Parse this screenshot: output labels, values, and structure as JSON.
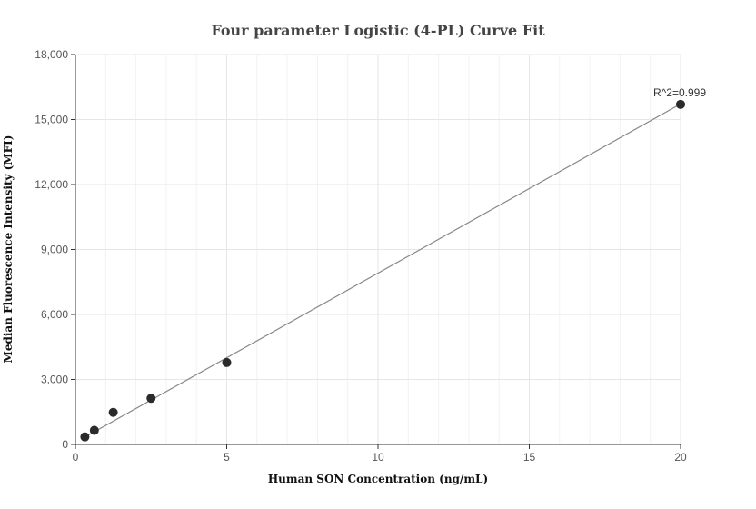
{
  "chart_data": {
    "type": "scatter",
    "title": "Four parameter Logistic (4-PL) Curve Fit",
    "xlabel": "Human SON Concentration (ng/mL)",
    "ylabel": "Median Fluorescence Intensity (MFI)",
    "xlim": [
      0,
      20
    ],
    "ylim": [
      0,
      18000
    ],
    "x_ticks": [
      0,
      5,
      10,
      15,
      20
    ],
    "x_tick_labels": [
      "0",
      "5",
      "10",
      "15",
      "20"
    ],
    "y_ticks": [
      0,
      3000,
      6000,
      9000,
      12000,
      15000,
      18000
    ],
    "y_tick_labels": [
      "0",
      "3,000",
      "6,000",
      "9,000",
      "12,000",
      "15,000",
      "18,000"
    ],
    "grid": true,
    "series": [
      {
        "points": [
          {
            "x": 0.3125,
            "y": 350
          },
          {
            "x": 0.625,
            "y": 650
          },
          {
            "x": 1.25,
            "y": 1480
          },
          {
            "x": 2.5,
            "y": 2130
          },
          {
            "x": 5,
            "y": 3780
          },
          {
            "x": 20,
            "y": 15700
          }
        ]
      }
    ],
    "fit_line": {
      "x": [
        0.3125,
        20
      ],
      "y": [
        340,
        15720
      ],
      "color": "#888888"
    },
    "point_color": "#2b2b2b",
    "annotation": {
      "text": "R^2=0.999",
      "x": 20,
      "y": 15700
    }
  }
}
